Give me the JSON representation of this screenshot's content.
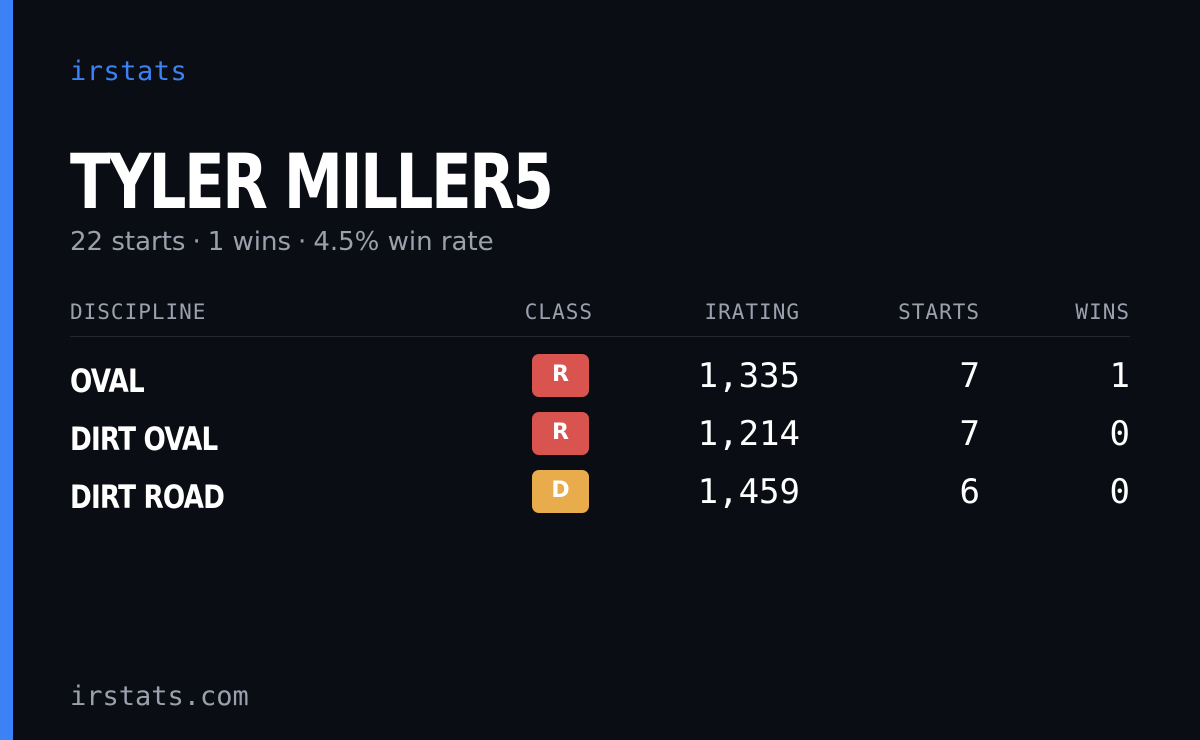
{
  "brand": "irstats",
  "player": {
    "name": "TYLER MILLER5",
    "starts": "22 starts",
    "wins": "1 wins",
    "win_rate": "4.5% win rate",
    "separator": "·"
  },
  "table": {
    "headers": {
      "discipline": "DISCIPLINE",
      "class": "CLASS",
      "irating": "IRATING",
      "starts": "STARTS",
      "wins": "WINS"
    },
    "rows": [
      {
        "discipline": "OVAL",
        "class": "R",
        "class_color": "#d9534f",
        "irating": "1,335",
        "starts": "7",
        "wins": "1"
      },
      {
        "discipline": "DIRT OVAL",
        "class": "R",
        "class_color": "#d9534f",
        "irating": "1,214",
        "starts": "7",
        "wins": "0"
      },
      {
        "discipline": "DIRT ROAD",
        "class": "D",
        "class_color": "#e8ac4c",
        "irating": "1,459",
        "starts": "6",
        "wins": "0"
      }
    ]
  },
  "footer": "irstats.com",
  "colors": {
    "background": "#0b0d14",
    "accent": "#3b82f6",
    "muted_text": "#9aa1ad",
    "text": "#ffffff"
  }
}
